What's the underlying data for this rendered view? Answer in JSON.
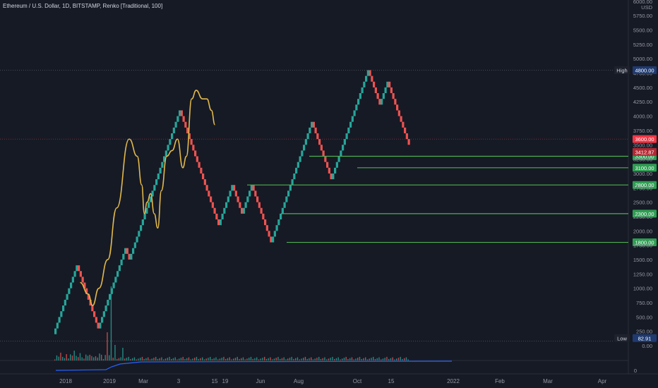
{
  "header": {
    "title": "Ethereum / U.S. Dollar, 1D, BITSTAMP, Renko [Traditional, 100]"
  },
  "price_axis": {
    "unit": "USD",
    "ticks": [
      "5750.00",
      "5500.00",
      "5250.00",
      "5000.00",
      "4750.00",
      "4500.00",
      "4250.00",
      "4000.00",
      "3750.00",
      "3500.00",
      "3250.00",
      "3000.00",
      "2750.00",
      "2500.00",
      "2250.00",
      "2000.00",
      "1750.00",
      "1500.00",
      "1250.00",
      "1000.00",
      "750.00",
      "500.00",
      "250.00",
      "0.00"
    ],
    "top_label": "6000.00"
  },
  "volume_axis": {
    "tick": "0"
  },
  "time_axis": {
    "labels": [
      "2018",
      "2019",
      "Mar",
      "3",
      "15",
      "19",
      "Jun",
      "Aug",
      "Oct",
      "15",
      "2022",
      "Feb",
      "Mar",
      "Apr"
    ]
  },
  "badges": {
    "high": {
      "label": "High",
      "value": "4800.00",
      "color": "#2962ff"
    },
    "current": {
      "value": "3600.00",
      "color": "#f23645"
    },
    "last": {
      "value": "3412.87",
      "color": "#b22833"
    },
    "low": {
      "label": "Low",
      "value": "82.91",
      "color": "#2962ff"
    }
  },
  "colors": {
    "up": "#26a69a",
    "down": "#ef5350",
    "ma": "#e2b94a",
    "level": "#4caf50",
    "volume_line": "#2962ff"
  },
  "chart_data": {
    "type": "renko",
    "box_size": 100,
    "ylim": [
      0,
      6000
    ],
    "swings": [
      200,
      1400,
      700,
      300,
      1700,
      1500,
      4100,
      2100,
      2800,
      2300,
      2800,
      1800,
      3900,
      2900,
      4800,
      4200,
      4600,
      3500
    ],
    "ma_points": [
      [
        650,
        1100
      ],
      [
        1100,
        900
      ],
      [
        1350,
        700
      ],
      [
        1700,
        1000
      ],
      [
        2200,
        1500
      ],
      [
        2700,
        2400
      ],
      [
        3400,
        3600
      ],
      [
        3850,
        3300
      ],
      [
        4100,
        2800
      ],
      [
        4250,
        2300
      ],
      [
        4400,
        2500
      ],
      [
        4600,
        2650
      ],
      [
        4800,
        2300
      ],
      [
        5000,
        2050
      ],
      [
        5200,
        2700
      ],
      [
        5500,
        3300
      ],
      [
        5800,
        3400
      ],
      [
        6100,
        3600
      ],
      [
        6400,
        3100
      ],
      [
        6600,
        3300
      ],
      [
        6900,
        4300
      ],
      [
        7150,
        4450
      ],
      [
        7500,
        4300
      ],
      [
        7750,
        4300
      ],
      [
        8000,
        4100
      ],
      [
        8200,
        3850
      ]
    ],
    "support_levels": [
      {
        "value": 3300,
        "label": "3300.00"
      },
      {
        "value": 3100,
        "label": "3100.00"
      },
      {
        "value": 2800,
        "label": "2800.00"
      },
      {
        "value": 2300,
        "label": "2300.00"
      },
      {
        "value": 1800,
        "label": "1800.00"
      }
    ],
    "high": 4800,
    "low": 82.91,
    "last": 3412.87,
    "current_line": 3600
  }
}
